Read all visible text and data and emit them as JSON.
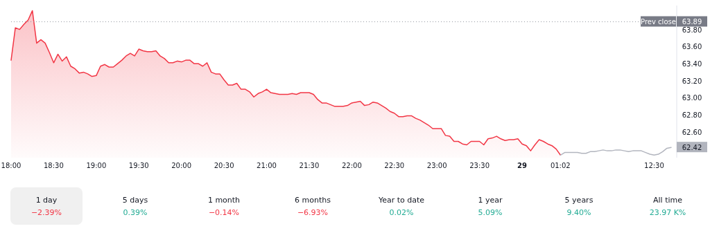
{
  "chart_data": [
    {
      "type": "area",
      "categories": [
        "18:00",
        null,
        null,
        null,
        null,
        null,
        null,
        null,
        null,
        null,
        "18:30",
        null,
        null,
        null,
        null,
        null,
        null,
        null,
        null,
        null,
        "19:00",
        null,
        null,
        null,
        null,
        null,
        null,
        null,
        null,
        null,
        "19:30",
        null,
        null,
        null,
        null,
        null,
        null,
        null,
        null,
        null,
        "20:00",
        null,
        null,
        null,
        null,
        null,
        null,
        null,
        null,
        null,
        "20:30",
        null,
        null,
        null,
        null,
        null,
        null,
        null,
        null,
        null,
        "21:00",
        null,
        null,
        null,
        null,
        null,
        null,
        null,
        null,
        null,
        "21:30",
        null,
        null,
        null,
        null,
        null,
        null,
        null,
        null,
        null,
        "22:00",
        null,
        null,
        null,
        null,
        null,
        null,
        null,
        null,
        null,
        "22:30",
        null,
        null,
        null,
        null,
        null,
        null,
        null,
        null,
        null,
        "23:00",
        null,
        null,
        null,
        null,
        null,
        null,
        null,
        null,
        null,
        "23:30",
        null,
        null,
        null,
        null,
        null,
        null,
        null,
        null,
        null,
        "29",
        null,
        null,
        null,
        null,
        null,
        null,
        null,
        null,
        "01:02",
        null,
        null,
        null,
        null,
        null,
        null,
        null,
        null,
        null,
        null,
        null,
        null,
        null,
        null,
        null,
        null,
        null,
        null,
        null,
        null,
        null,
        "12:30",
        null,
        null,
        null,
        null
      ],
      "series": [
        {
          "type": "area",
          "color": "#f23645",
          "values": [
            63.44,
            63.82,
            63.8,
            63.86,
            63.91,
            64.02,
            63.64,
            63.68,
            63.64,
            63.53,
            63.41,
            63.51,
            63.43,
            63.48,
            63.37,
            63.34,
            63.29,
            63.3,
            63.28,
            63.25,
            63.26,
            63.37,
            63.39,
            63.36,
            63.36,
            63.4,
            63.44,
            63.49,
            63.52,
            63.49,
            63.57,
            63.55,
            63.54,
            63.54,
            63.55,
            63.49,
            63.46,
            63.41,
            63.41,
            63.43,
            63.42,
            63.44,
            63.44,
            63.4,
            63.4,
            63.37,
            63.41,
            63.3,
            63.28,
            63.28,
            63.21,
            63.15,
            63.15,
            63.17,
            63.1,
            63.1,
            63.07,
            63.01,
            63.05,
            63.07,
            63.1,
            63.06,
            63.05,
            63.04,
            63.04,
            63.04,
            63.05,
            63.04,
            63.06,
            63.06,
            63.06,
            63.04,
            62.98,
            62.94,
            62.94,
            62.92,
            62.9,
            62.9,
            62.9,
            62.91,
            62.94,
            62.95,
            62.96,
            62.91,
            62.92,
            62.95,
            62.94,
            62.91,
            62.88,
            62.84,
            62.82,
            62.78,
            62.78,
            62.79,
            62.79,
            62.76,
            62.74,
            62.71,
            62.68,
            62.64,
            62.64,
            62.64,
            62.56,
            62.55,
            62.49,
            62.49,
            62.46,
            62.45,
            62.49,
            62.49,
            62.49,
            62.45,
            62.52,
            62.53,
            62.55,
            62.52,
            62.5,
            62.51,
            62.51,
            62.52,
            62.46,
            62.44,
            62.38,
            62.45,
            62.51,
            62.49,
            62.46,
            62.44,
            62.4,
            62.33,
            null,
            null,
            null,
            null,
            null,
            null,
            null,
            null,
            null,
            null,
            null,
            null,
            null,
            null,
            null,
            null,
            null,
            null,
            null,
            null,
            null,
            null,
            null,
            null,
            null,
            null
          ]
        },
        {
          "type": "line",
          "color": "#b2b5be",
          "values": [
            null,
            null,
            null,
            null,
            null,
            null,
            null,
            null,
            null,
            null,
            null,
            null,
            null,
            null,
            null,
            null,
            null,
            null,
            null,
            null,
            null,
            null,
            null,
            null,
            null,
            null,
            null,
            null,
            null,
            null,
            null,
            null,
            null,
            null,
            null,
            null,
            null,
            null,
            null,
            null,
            null,
            null,
            null,
            null,
            null,
            null,
            null,
            null,
            null,
            null,
            null,
            null,
            null,
            null,
            null,
            null,
            null,
            null,
            null,
            null,
            null,
            null,
            null,
            null,
            null,
            null,
            null,
            null,
            null,
            null,
            null,
            null,
            null,
            null,
            null,
            null,
            null,
            null,
            null,
            null,
            null,
            null,
            null,
            null,
            null,
            null,
            null,
            null,
            null,
            null,
            null,
            null,
            null,
            null,
            null,
            null,
            null,
            null,
            null,
            null,
            null,
            null,
            null,
            null,
            null,
            null,
            null,
            null,
            null,
            null,
            null,
            null,
            null,
            null,
            null,
            null,
            null,
            null,
            null,
            null,
            null,
            null,
            null,
            null,
            null,
            null,
            null,
            null,
            null,
            62.33,
            62.36,
            62.36,
            62.36,
            62.36,
            62.35,
            62.35,
            62.37,
            62.37,
            62.38,
            62.39,
            62.38,
            62.38,
            62.39,
            62.39,
            62.38,
            62.37,
            62.38,
            62.38,
            62.38,
            62.36,
            62.34,
            62.33,
            62.34,
            62.37,
            62.41,
            62.42
          ]
        }
      ],
      "ylim": [
        62.3,
        64.08
      ],
      "yticks": [
        {
          "value": 62.6,
          "label": "62.60"
        },
        {
          "value": 62.8,
          "label": "62.80"
        },
        {
          "value": 63.0,
          "label": "63.00"
        },
        {
          "value": 63.2,
          "label": "63.20"
        },
        {
          "value": 63.4,
          "label": "63.40"
        },
        {
          "value": 63.6,
          "label": "63.60"
        },
        {
          "value": 63.8,
          "label": "63.80"
        }
      ],
      "ref_lines": [
        {
          "axis": "y",
          "value": 63.89,
          "label": "Prev close",
          "line_style": "dotted",
          "color": "#9598a1"
        }
      ],
      "annotations": [
        {
          "text": "63.89",
          "y": 63.89
        },
        {
          "text": "62.42",
          "y": 62.42
        }
      ]
    },
    {
      "type": "other",
      "categories": [
        "1 day",
        "5 days",
        "1 month",
        "6 months",
        "Year to date",
        "1 year",
        "5 years",
        "All time"
      ],
      "value_labels": [
        "−2.39%",
        "0.39%",
        "−0.14%",
        "−6.93%",
        "0.02%",
        "5.09%",
        "9.40%",
        "23.97 K%"
      ],
      "colors": [
        "#f23645",
        "#22ab94",
        "#f23645",
        "#f23645",
        "#22ab94",
        "#22ab94",
        "#22ab94",
        "#22ab94"
      ]
    }
  ]
}
